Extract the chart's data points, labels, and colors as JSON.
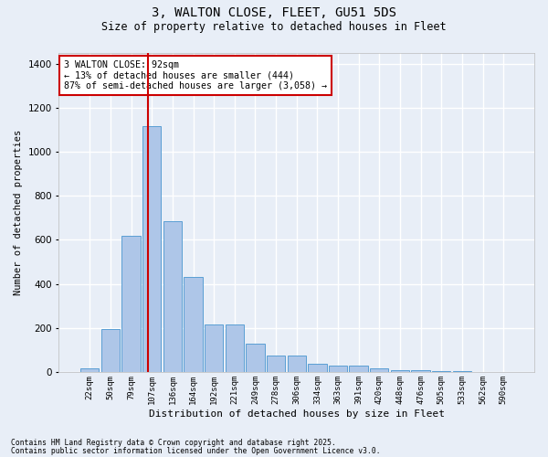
{
  "title1": "3, WALTON CLOSE, FLEET, GU51 5DS",
  "title2": "Size of property relative to detached houses in Fleet",
  "xlabel": "Distribution of detached houses by size in Fleet",
  "ylabel": "Number of detached properties",
  "categories": [
    "22sqm",
    "50sqm",
    "79sqm",
    "107sqm",
    "136sqm",
    "164sqm",
    "192sqm",
    "221sqm",
    "249sqm",
    "278sqm",
    "306sqm",
    "334sqm",
    "363sqm",
    "391sqm",
    "420sqm",
    "448sqm",
    "476sqm",
    "505sqm",
    "533sqm",
    "562sqm",
    "590sqm"
  ],
  "values": [
    15,
    195,
    620,
    1115,
    685,
    430,
    215,
    215,
    130,
    75,
    75,
    35,
    30,
    27,
    15,
    10,
    10,
    5,
    3,
    1,
    1
  ],
  "bar_color": "#aec6e8",
  "bar_edge_color": "#5a9fd4",
  "background_color": "#e8eef7",
  "grid_color": "#ffffff",
  "vline_x": 2.82,
  "vline_color": "#cc0000",
  "annotation_text": "3 WALTON CLOSE: 92sqm\n← 13% of detached houses are smaller (444)\n87% of semi-detached houses are larger (3,058) →",
  "annotation_box_color": "#ffffff",
  "annotation_box_edge": "#cc0000",
  "footer1": "Contains HM Land Registry data © Crown copyright and database right 2025.",
  "footer2": "Contains public sector information licensed under the Open Government Licence v3.0.",
  "ylim": [
    0,
    1450
  ],
  "yticks": [
    0,
    200,
    400,
    600,
    800,
    1000,
    1200,
    1400
  ],
  "figsize": [
    6.0,
    5.0
  ],
  "dpi": 100
}
